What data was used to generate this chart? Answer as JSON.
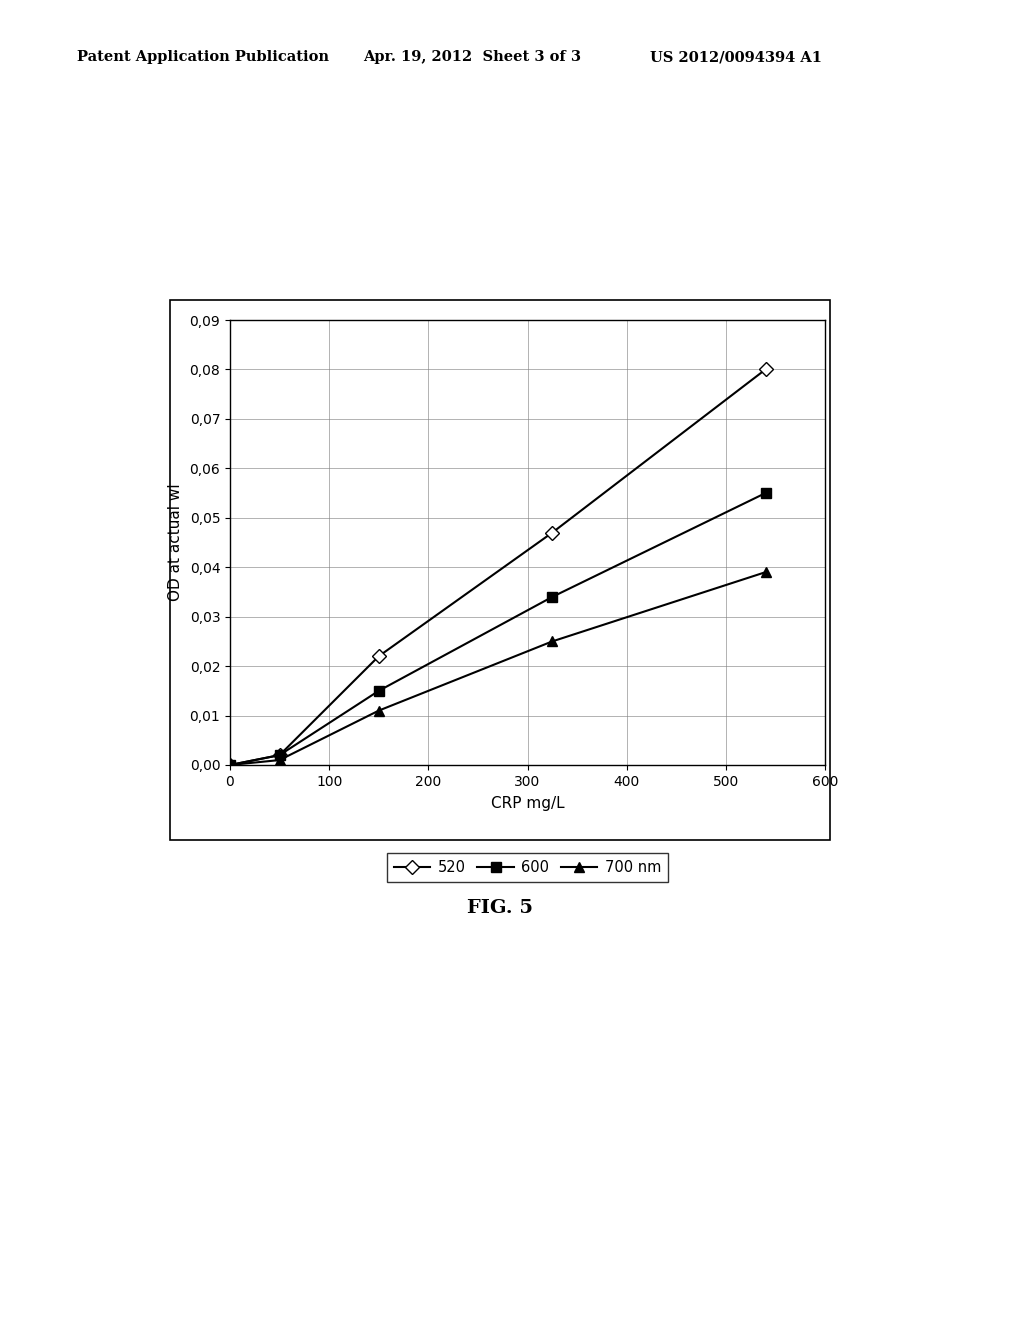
{
  "series": [
    {
      "label": "520",
      "x": [
        0,
        50,
        150,
        325,
        540
      ],
      "y": [
        0.0,
        0.002,
        0.022,
        0.047,
        0.08
      ],
      "marker": "D",
      "marker_facecolor": "white",
      "marker_edgecolor": "black",
      "color": "black",
      "markersize": 7
    },
    {
      "label": "600",
      "x": [
        0,
        50,
        150,
        325,
        540
      ],
      "y": [
        0.0,
        0.002,
        0.015,
        0.034,
        0.055
      ],
      "marker": "s",
      "marker_facecolor": "black",
      "marker_edgecolor": "black",
      "color": "black",
      "markersize": 7
    },
    {
      "label": "700 nm",
      "x": [
        0,
        50,
        150,
        325,
        540
      ],
      "y": [
        0.0,
        0.001,
        0.011,
        0.025,
        0.039
      ],
      "marker": "^",
      "marker_facecolor": "black",
      "marker_edgecolor": "black",
      "color": "black",
      "markersize": 7
    }
  ],
  "xlabel": "CRP mg/L",
  "ylabel": "OD at actual wl",
  "xlim": [
    0,
    600
  ],
  "ylim": [
    0.0,
    0.09
  ],
  "yticks": [
    0.0,
    0.01,
    0.02,
    0.03,
    0.04,
    0.05,
    0.06,
    0.07,
    0.08,
    0.09
  ],
  "xticks": [
    0,
    100,
    200,
    300,
    400,
    500,
    600
  ],
  "ytick_labels": [
    "0,00",
    "0,01",
    "0,02",
    "0,03",
    "0,04",
    "0,05",
    "0,06",
    "0,07",
    "0,08",
    "0,09"
  ],
  "fig_caption": "FIG. 5",
  "header_left": "Patent Application Publication",
  "header_mid": "Apr. 19, 2012  Sheet 3 of 3",
  "header_right": "US 2012/0094394 A1",
  "background_color": "#ffffff",
  "plot_bg_color": "#ffffff"
}
